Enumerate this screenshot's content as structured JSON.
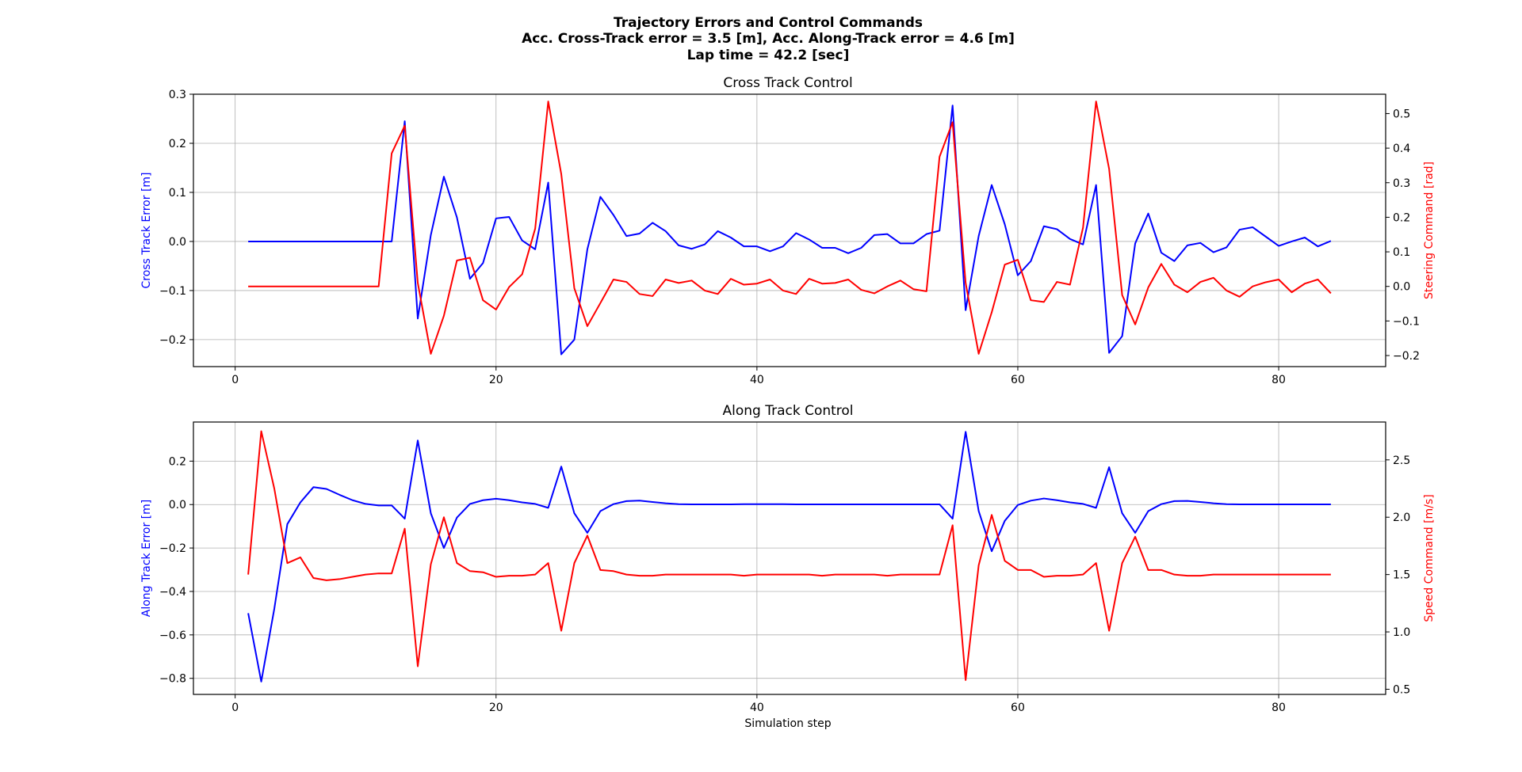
{
  "figure": {
    "title_lines": [
      "Trajectory Errors and Control Commands",
      "Acc. Cross-Track error = 3.5 [m], Acc. Along-Track error = 4.6 [m]",
      "Lap time = 42.2 [sec]"
    ]
  },
  "colors": {
    "error": "#0000ff",
    "command": "#ff0000",
    "grid": "#b0b0b0",
    "axes": "#000000"
  },
  "chart_data": [
    {
      "type": "line",
      "title": "Cross Track Control",
      "xlabel": "",
      "xlim": [
        -3.2,
        88.2
      ],
      "xticks": [
        0,
        20,
        40,
        60,
        80
      ],
      "grid": true,
      "left_axis": {
        "label": "Cross Track Error [m]",
        "color": "#0000ff",
        "ylim": [
          -0.255,
          0.3
        ],
        "ticks": [
          -0.2,
          -0.1,
          0.0,
          0.1,
          0.2,
          0.3
        ],
        "tick_labels": [
          "−0.2",
          "−0.1",
          "0.0",
          "0.1",
          "0.2",
          "0.3"
        ]
      },
      "right_axis": {
        "label": "Steering Command [rad]",
        "color": "#ff0000",
        "ylim": [
          -0.232,
          0.556
        ],
        "ticks": [
          -0.2,
          -0.1,
          0.0,
          0.1,
          0.2,
          0.3,
          0.4,
          0.5
        ],
        "tick_labels": [
          "−0.2",
          "−0.1",
          "0.0",
          "0.1",
          "0.2",
          "0.3",
          "0.4",
          "0.5"
        ]
      },
      "x": [
        1,
        2,
        3,
        4,
        5,
        6,
        7,
        8,
        9,
        10,
        11,
        12,
        13,
        14,
        15,
        16,
        17,
        18,
        19,
        20,
        21,
        22,
        23,
        24,
        25,
        26,
        27,
        28,
        29,
        30,
        31,
        32,
        33,
        34,
        35,
        36,
        37,
        38,
        39,
        40,
        41,
        42,
        43,
        44,
        45,
        46,
        47,
        48,
        49,
        50,
        51,
        52,
        53,
        54,
        55,
        56,
        57,
        58,
        59,
        60,
        61,
        62,
        63,
        64,
        65,
        66,
        67,
        68,
        69,
        70,
        71,
        72,
        73,
        74,
        75,
        76,
        77,
        78,
        79,
        80,
        81,
        82,
        83,
        84
      ],
      "series": [
        {
          "axis": "left",
          "color": "#0000ff",
          "values": [
            0,
            0,
            0,
            0,
            0,
            0,
            0,
            0,
            0,
            0,
            0,
            0,
            0.245,
            -0.157,
            0.013,
            0.132,
            0.049,
            -0.076,
            -0.044,
            0.047,
            0.05,
            0.002,
            -0.016,
            0.12,
            -0.23,
            -0.2,
            -0.016,
            0.091,
            0.054,
            0.011,
            0.016,
            0.038,
            0.021,
            -0.008,
            -0.015,
            -0.006,
            0.021,
            0.008,
            -0.01,
            -0.01,
            -0.02,
            -0.01,
            0.017,
            0.004,
            -0.013,
            -0.013,
            -0.024,
            -0.013,
            0.013,
            0.015,
            -0.004,
            -0.004,
            0.015,
            0.022,
            0.277,
            -0.14,
            0.011,
            0.115,
            0.035,
            -0.069,
            -0.04,
            0.031,
            0.025,
            0.005,
            -0.006,
            0.115,
            -0.227,
            -0.193,
            -0.004,
            0.057,
            -0.023,
            -0.04,
            -0.008,
            -0.003,
            -0.022,
            -0.012,
            0.024,
            0.029,
            0.01,
            -0.009,
            0.0,
            0.008,
            -0.01,
            0.001
          ]
        },
        {
          "axis": "right",
          "color": "#ff0000",
          "values": [
            0,
            0,
            0,
            0,
            0,
            0,
            0,
            0,
            0,
            0,
            0,
            0.385,
            0.465,
            0.01,
            -0.195,
            -0.085,
            0.075,
            0.083,
            -0.04,
            -0.067,
            -0.002,
            0.035,
            0.167,
            0.535,
            0.325,
            -0.005,
            -0.115,
            -0.048,
            0.02,
            0.013,
            -0.022,
            -0.028,
            0.02,
            0.01,
            0.017,
            -0.012,
            -0.022,
            0.022,
            0.005,
            0.008,
            0.02,
            -0.012,
            -0.022,
            0.022,
            0.008,
            0.01,
            0.02,
            -0.01,
            -0.02,
            0.0,
            0.017,
            -0.008,
            -0.014,
            0.375,
            0.475,
            0.01,
            -0.195,
            -0.075,
            0.063,
            0.077,
            -0.04,
            -0.045,
            0.013,
            0.005,
            0.17,
            0.535,
            0.34,
            -0.025,
            -0.11,
            -0.003,
            0.065,
            0.005,
            -0.017,
            0.013,
            0.025,
            -0.012,
            -0.03,
            0.0,
            0.012,
            0.02,
            -0.017,
            0.008,
            0.02,
            -0.02
          ]
        }
      ]
    },
    {
      "type": "line",
      "title": "Along Track Control",
      "xlabel": "Simulation step",
      "xlim": [
        -3.2,
        88.2
      ],
      "xticks": [
        0,
        20,
        40,
        60,
        80
      ],
      "grid": true,
      "left_axis": {
        "label": "Along Track Error [m]",
        "color": "#0000ff",
        "ylim": [
          -0.874,
          0.38
        ],
        "ticks": [
          -0.8,
          -0.6,
          -0.4,
          -0.2,
          0.0,
          0.2
        ],
        "tick_labels": [
          "−0.8",
          "−0.6",
          "−0.4",
          "−0.2",
          "0.0",
          "0.2"
        ]
      },
      "right_axis": {
        "label": "Speed Command [m/s]",
        "color": "#ff0000",
        "ylim": [
          0.455,
          2.83
        ],
        "ticks": [
          0.5,
          1.0,
          1.5,
          2.0,
          2.5
        ],
        "tick_labels": [
          "0.5",
          "1.0",
          "1.5",
          "2.0",
          "2.5"
        ]
      },
      "x": [
        1,
        2,
        3,
        4,
        5,
        6,
        7,
        8,
        9,
        10,
        11,
        12,
        13,
        14,
        15,
        16,
        17,
        18,
        19,
        20,
        21,
        22,
        23,
        24,
        25,
        26,
        27,
        28,
        29,
        30,
        31,
        32,
        33,
        34,
        35,
        36,
        37,
        38,
        39,
        40,
        41,
        42,
        43,
        44,
        45,
        46,
        47,
        48,
        49,
        50,
        51,
        52,
        53,
        54,
        55,
        56,
        57,
        58,
        59,
        60,
        61,
        62,
        63,
        64,
        65,
        66,
        67,
        68,
        69,
        70,
        71,
        72,
        73,
        74,
        75,
        76,
        77,
        78,
        79,
        80,
        81,
        82,
        83,
        84
      ],
      "series": [
        {
          "axis": "left",
          "color": "#0000ff",
          "values": [
            -0.5,
            -0.815,
            -0.48,
            -0.09,
            0.01,
            0.08,
            0.072,
            0.045,
            0.02,
            0.003,
            -0.004,
            -0.004,
            -0.065,
            0.295,
            -0.04,
            -0.2,
            -0.06,
            0.003,
            0.02,
            0.027,
            0.02,
            0.01,
            0.003,
            -0.015,
            0.175,
            -0.04,
            -0.13,
            -0.03,
            0.002,
            0.016,
            0.018,
            0.012,
            0.006,
            0.002,
            0.001,
            0.001,
            0.001,
            0.001,
            0.002,
            0.002,
            0.002,
            0.002,
            0.001,
            0.001,
            0.001,
            0.001,
            0.001,
            0.001,
            0.001,
            0.001,
            0.001,
            0.001,
            0.001,
            0.001,
            -0.065,
            0.335,
            -0.03,
            -0.215,
            -0.075,
            -0.002,
            0.018,
            0.028,
            0.02,
            0.01,
            0.003,
            -0.015,
            0.172,
            -0.04,
            -0.13,
            -0.03,
            0.002,
            0.016,
            0.017,
            0.012,
            0.006,
            0.002,
            0.001,
            0.001,
            0.001,
            0.001,
            0.001,
            0.001,
            0.001,
            0.001
          ]
        },
        {
          "axis": "right",
          "color": "#ff0000",
          "values": [
            1.5,
            2.75,
            2.25,
            1.6,
            1.65,
            1.47,
            1.45,
            1.46,
            1.48,
            1.5,
            1.51,
            1.51,
            1.9,
            0.7,
            1.59,
            2.0,
            1.6,
            1.53,
            1.52,
            1.48,
            1.49,
            1.49,
            1.5,
            1.6,
            1.01,
            1.6,
            1.84,
            1.54,
            1.53,
            1.5,
            1.49,
            1.49,
            1.5,
            1.5,
            1.5,
            1.5,
            1.5,
            1.5,
            1.49,
            1.5,
            1.5,
            1.5,
            1.5,
            1.5,
            1.49,
            1.5,
            1.5,
            1.5,
            1.5,
            1.49,
            1.5,
            1.5,
            1.5,
            1.5,
            1.93,
            0.58,
            1.58,
            2.02,
            1.62,
            1.54,
            1.54,
            1.48,
            1.49,
            1.49,
            1.5,
            1.6,
            1.01,
            1.6,
            1.83,
            1.54,
            1.54,
            1.5,
            1.49,
            1.49,
            1.5,
            1.5,
            1.5,
            1.5,
            1.5,
            1.5,
            1.5,
            1.5,
            1.5,
            1.5
          ]
        }
      ]
    }
  ]
}
